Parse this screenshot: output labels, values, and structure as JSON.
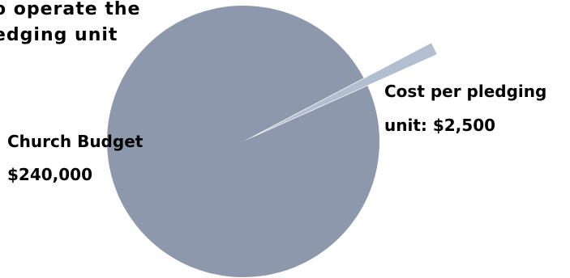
{
  "title": {
    "line1": "o operate the",
    "line2": "edging unit"
  },
  "chart_data": {
    "type": "pie",
    "slices": [
      {
        "label_line1": "Church Budget",
        "label_line2": "$240,000",
        "value": 240000,
        "color": "#8d98ad",
        "exploded": false
      },
      {
        "label_line1": "Cost per pledging",
        "label_line2": "unit:  $2,500",
        "value": 2500,
        "color": "#b3bfd0",
        "exploded": true
      }
    ],
    "legend": "none"
  }
}
